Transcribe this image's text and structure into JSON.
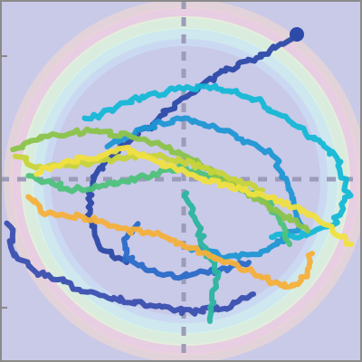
{
  "scene": {
    "background_color": "#c9c9e8",
    "frame_color": "#8a8a8a",
    "guide_color": "#9c9cb8",
    "ring_colors": [
      "#ffe0c8",
      "#ffd2dc",
      "#e4ffd8",
      "#d4fff2",
      "#ccf2ff"
    ]
  },
  "trail_colors": [
    "#2d4aa8",
    "#2a6bc8",
    "#1f97d4",
    "#14b8d6",
    "#2bb5a0",
    "#4ec27a",
    "#8bc34a",
    "#c8d43a",
    "#f0e040",
    "#f5b03a",
    "#3a4fb0"
  ]
}
